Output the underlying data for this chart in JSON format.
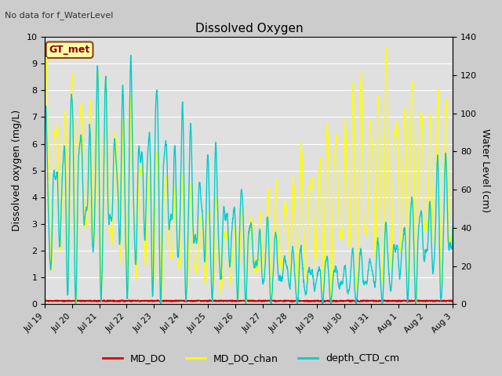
{
  "title": "Dissolved Oxygen",
  "top_left_text": "No data for f_WaterLevel",
  "annotation_box": "GT_met",
  "ylabel_left": "Dissolved oxygen (mg/L)",
  "ylabel_right": "Water Level (cm)",
  "ylim_left": [
    0.0,
    10.0
  ],
  "ylim_right": [
    0,
    140
  ],
  "yticks_left": [
    0.0,
    1.0,
    2.0,
    3.0,
    4.0,
    5.0,
    6.0,
    7.0,
    8.0,
    9.0,
    10.0
  ],
  "yticks_right": [
    0,
    20,
    40,
    60,
    80,
    100,
    120,
    140
  ],
  "xticklabels": [
    "Jul 19",
    "Jul 20",
    "Jul 21",
    "Jul 22",
    "Jul 23",
    "Jul 24",
    "Jul 25",
    "Jul 26",
    "Jul 27",
    "Jul 28",
    "Jul 29",
    "Jul 30",
    "Jul 31",
    "Aug 1",
    "Aug 2",
    "Aug 3"
  ],
  "legend_labels": [
    "MD_DO",
    "MD_DO_chan",
    "depth_CTD_cm"
  ],
  "legend_colors": [
    "#dd0000",
    "#ffff00",
    "#00cccc"
  ],
  "line_colors": {
    "MD_DO": "#cc0000",
    "MD_DO_chan": "#ffff00",
    "depth_CTD_cm": "#00cccc"
  },
  "background_color": "#cccccc",
  "plot_bg_color": "#e0e0e0",
  "grid_color": "#ffffff",
  "figsize": [
    6.4,
    4.8
  ],
  "dpi": 100
}
